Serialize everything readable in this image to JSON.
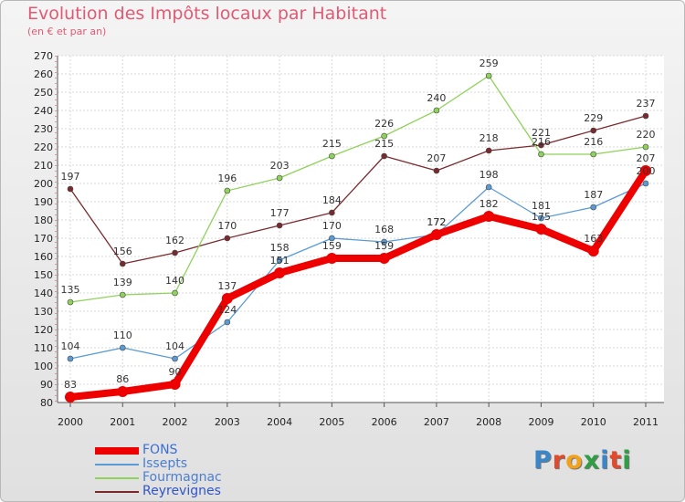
{
  "chart_data": {
    "type": "line",
    "title": "Evolution des Impôts locaux par Habitant",
    "subtitle": "(en € et par an)",
    "x": [
      "2000",
      "2001",
      "2002",
      "2003",
      "2004",
      "2005",
      "2006",
      "2007",
      "2008",
      "2009",
      "2010",
      "2011"
    ],
    "ylim": [
      80,
      270
    ],
    "yticks": [
      80,
      90,
      100,
      110,
      120,
      130,
      140,
      150,
      160,
      170,
      180,
      190,
      200,
      210,
      220,
      230,
      240,
      250,
      260,
      270
    ],
    "grid": true,
    "legend_position": "bottom-left",
    "series": [
      {
        "name": "Reyrevignes",
        "color": "#7a2a2e",
        "values": [
          197,
          156,
          162,
          170,
          177,
          184,
          215,
          207,
          218,
          221,
          229,
          237
        ]
      },
      {
        "name": "Fourmagnac",
        "color": "#8fd25a",
        "values": [
          135,
          139,
          140,
          196,
          203,
          215,
          226,
          240,
          259,
          216,
          216,
          220
        ]
      },
      {
        "name": "Issepts",
        "color": "#5b9bd5",
        "values": [
          104,
          110,
          104,
          124,
          158,
          170,
          168,
          172,
          198,
          181,
          187,
          200
        ]
      },
      {
        "name": "FONS",
        "color": "#ee0000",
        "values": [
          83,
          86,
          90,
          137,
          151,
          159,
          159,
          172,
          182,
          175,
          163,
          207
        ]
      }
    ]
  },
  "legend": [
    {
      "name": "FONS",
      "color": "#ee0000"
    },
    {
      "name": "Issepts",
      "color": "#5b9bd5"
    },
    {
      "name": "Fourmagnac",
      "color": "#8fd25a"
    },
    {
      "name": "Reyrevignes",
      "color": "#7a2a2e"
    }
  ],
  "logo": {
    "text": "Proxiti",
    "letters": [
      "P",
      "r",
      "o",
      "x",
      "i",
      "t",
      "i"
    ],
    "colors": [
      "#3a86c8",
      "#e3492b",
      "#f2a21a",
      "#2f9e44",
      "#3a86c8",
      "#e3492b",
      "#2f9e44"
    ]
  }
}
